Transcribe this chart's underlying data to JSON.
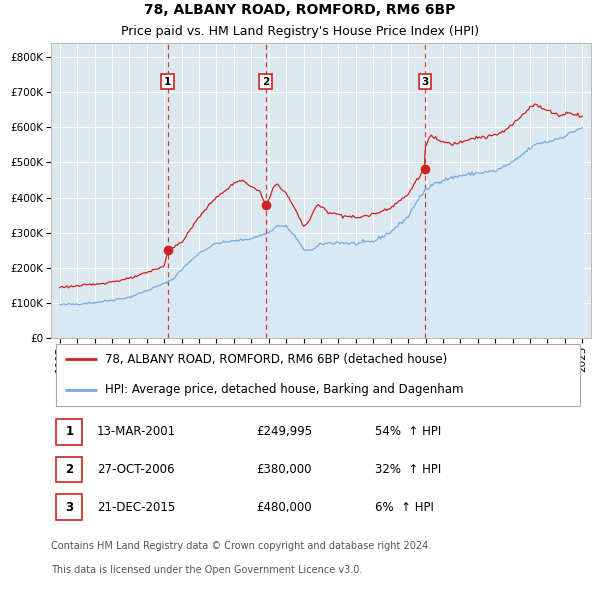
{
  "title": "78, ALBANY ROAD, ROMFORD, RM6 6BP",
  "subtitle": "Price paid vs. HM Land Registry's House Price Index (HPI)",
  "legend_line1": "78, ALBANY ROAD, ROMFORD, RM6 6BP (detached house)",
  "legend_line2": "HPI: Average price, detached house, Barking and Dagenham",
  "footer1": "Contains HM Land Registry data © Crown copyright and database right 2024.",
  "footer2": "This data is licensed under the Open Government Licence v3.0.",
  "transactions": [
    {
      "num": 1,
      "date": "13-MAR-2001",
      "price": 249995,
      "pct": "54%",
      "dir": "↑"
    },
    {
      "num": 2,
      "date": "27-OCT-2006",
      "price": 380000,
      "pct": "32%",
      "dir": "↑"
    },
    {
      "num": 3,
      "date": "21-DEC-2015",
      "price": 480000,
      "pct": "6%",
      "dir": "↑"
    }
  ],
  "transaction_dates_decimal": [
    2001.196,
    2006.822,
    2015.972
  ],
  "ylim": [
    0,
    840000
  ],
  "yticks": [
    0,
    100000,
    200000,
    300000,
    400000,
    500000,
    600000,
    700000,
    800000
  ],
  "ytick_labels": [
    "£0",
    "£100K",
    "£200K",
    "£300K",
    "£400K",
    "£500K",
    "£600K",
    "£700K",
    "£800K"
  ],
  "xlim_start": 1994.5,
  "xlim_end": 2025.5,
  "red_line_color": "#cc2222",
  "blue_line_color": "#7aaadd",
  "blue_fill_color": "#d8e8f4",
  "vline_color": "#cc2222",
  "dot_color": "#cc2222",
  "background_color": "#ffffff",
  "plot_bg_color": "#dce8f0",
  "grid_color": "#ffffff",
  "title_fontsize": 10,
  "subtitle_fontsize": 9,
  "axis_fontsize": 7.5,
  "legend_fontsize": 8.5,
  "table_fontsize": 8.5,
  "footer_fontsize": 7,
  "hpi_anchors": [
    [
      1995.0,
      95000
    ],
    [
      1996.0,
      97000
    ],
    [
      1997.0,
      101000
    ],
    [
      1998.0,
      108000
    ],
    [
      1999.0,
      116000
    ],
    [
      2000.0,
      135000
    ],
    [
      2001.0,
      155000
    ],
    [
      2001.5,
      168000
    ],
    [
      2002.0,
      195000
    ],
    [
      2003.0,
      242000
    ],
    [
      2004.0,
      270000
    ],
    [
      2005.0,
      276000
    ],
    [
      2006.0,
      283000
    ],
    [
      2007.0,
      300000
    ],
    [
      2007.5,
      320000
    ],
    [
      2008.0,
      318000
    ],
    [
      2008.5,
      290000
    ],
    [
      2009.0,
      252000
    ],
    [
      2009.5,
      250000
    ],
    [
      2010.0,
      268000
    ],
    [
      2011.0,
      272000
    ],
    [
      2012.0,
      268000
    ],
    [
      2013.0,
      275000
    ],
    [
      2014.0,
      302000
    ],
    [
      2015.0,
      345000
    ],
    [
      2015.5,
      390000
    ],
    [
      2016.0,
      420000
    ],
    [
      2016.5,
      440000
    ],
    [
      2017.0,
      450000
    ],
    [
      2018.0,
      462000
    ],
    [
      2019.0,
      470000
    ],
    [
      2020.0,
      475000
    ],
    [
      2021.0,
      500000
    ],
    [
      2022.0,
      540000
    ],
    [
      2022.5,
      555000
    ],
    [
      2023.0,
      558000
    ],
    [
      2024.0,
      575000
    ],
    [
      2024.9,
      598000
    ]
  ],
  "red_anchors": [
    [
      1995.0,
      145000
    ],
    [
      1996.0,
      148000
    ],
    [
      1997.0,
      153000
    ],
    [
      1998.0,
      160000
    ],
    [
      1999.0,
      169000
    ],
    [
      2000.0,
      186000
    ],
    [
      2001.0,
      205000
    ],
    [
      2001.196,
      249995
    ],
    [
      2002.0,
      272000
    ],
    [
      2003.0,
      345000
    ],
    [
      2004.0,
      402000
    ],
    [
      2004.5,
      418000
    ],
    [
      2005.0,
      442000
    ],
    [
      2005.5,
      448000
    ],
    [
      2006.0,
      432000
    ],
    [
      2006.5,
      415000
    ],
    [
      2006.822,
      380000
    ],
    [
      2007.0,
      392000
    ],
    [
      2007.3,
      432000
    ],
    [
      2007.5,
      438000
    ],
    [
      2008.0,
      412000
    ],
    [
      2008.5,
      368000
    ],
    [
      2009.0,
      318000
    ],
    [
      2009.3,
      332000
    ],
    [
      2009.8,
      382000
    ],
    [
      2010.0,
      372000
    ],
    [
      2010.5,
      358000
    ],
    [
      2011.0,
      352000
    ],
    [
      2012.0,
      342000
    ],
    [
      2013.0,
      352000
    ],
    [
      2014.0,
      372000
    ],
    [
      2015.0,
      408000
    ],
    [
      2015.5,
      452000
    ],
    [
      2015.972,
      480000
    ],
    [
      2016.0,
      548000
    ],
    [
      2016.3,
      578000
    ],
    [
      2016.5,
      568000
    ],
    [
      2017.0,
      558000
    ],
    [
      2017.5,
      552000
    ],
    [
      2018.0,
      558000
    ],
    [
      2018.5,
      568000
    ],
    [
      2019.0,
      572000
    ],
    [
      2019.5,
      572000
    ],
    [
      2020.0,
      578000
    ],
    [
      2020.5,
      588000
    ],
    [
      2021.0,
      608000
    ],
    [
      2021.5,
      632000
    ],
    [
      2022.0,
      658000
    ],
    [
      2022.3,
      668000
    ],
    [
      2022.5,
      658000
    ],
    [
      2023.0,
      648000
    ],
    [
      2023.5,
      638000
    ],
    [
      2023.8,
      633000
    ],
    [
      2024.0,
      638000
    ],
    [
      2024.3,
      643000
    ],
    [
      2024.5,
      638000
    ],
    [
      2024.9,
      633000
    ]
  ]
}
